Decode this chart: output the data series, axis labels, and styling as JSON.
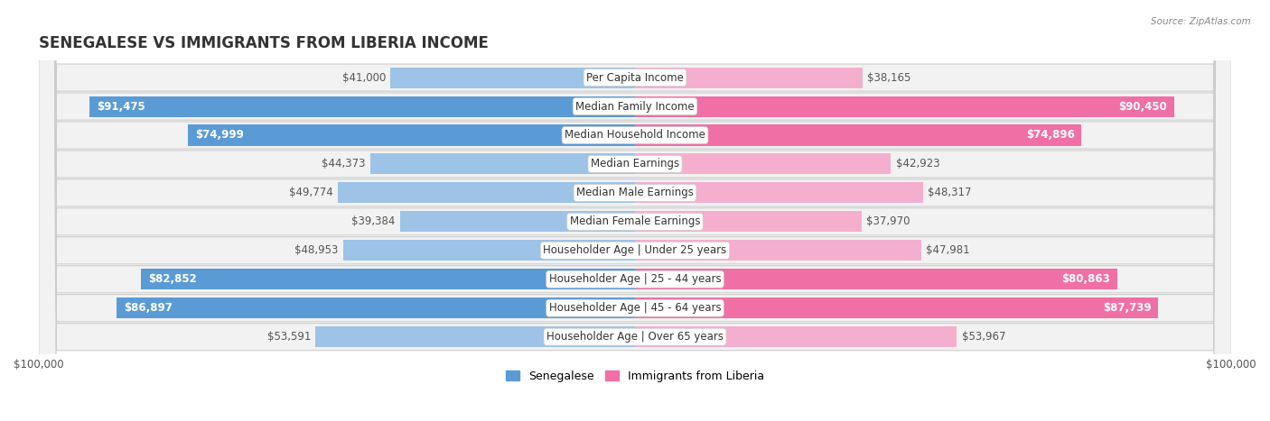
{
  "title": "SENEGALESE VS IMMIGRANTS FROM LIBERIA INCOME",
  "source": "Source: ZipAtlas.com",
  "categories": [
    "Per Capita Income",
    "Median Family Income",
    "Median Household Income",
    "Median Earnings",
    "Median Male Earnings",
    "Median Female Earnings",
    "Householder Age | Under 25 years",
    "Householder Age | 25 - 44 years",
    "Householder Age | 45 - 64 years",
    "Householder Age | Over 65 years"
  ],
  "senegalese": [
    41000,
    91475,
    74999,
    44373,
    49774,
    39384,
    48953,
    82852,
    86897,
    53591
  ],
  "liberia": [
    38165,
    90450,
    74896,
    42923,
    48317,
    37970,
    47981,
    80863,
    87739,
    53967
  ],
  "max_val": 100000,
  "blue_solid": "#5B9BD5",
  "blue_light": "#9DC3E6",
  "pink_solid": "#F06FA4",
  "pink_light": "#F4AFCF",
  "row_bg": "#F2F2F2",
  "row_border": "#D0D0D0",
  "label_font_size": 8.5,
  "title_font_size": 12,
  "legend_blue": "Senegalese",
  "legend_pink": "Immigrants from Liberia",
  "blue_threshold": 70000,
  "pink_threshold": 70000
}
